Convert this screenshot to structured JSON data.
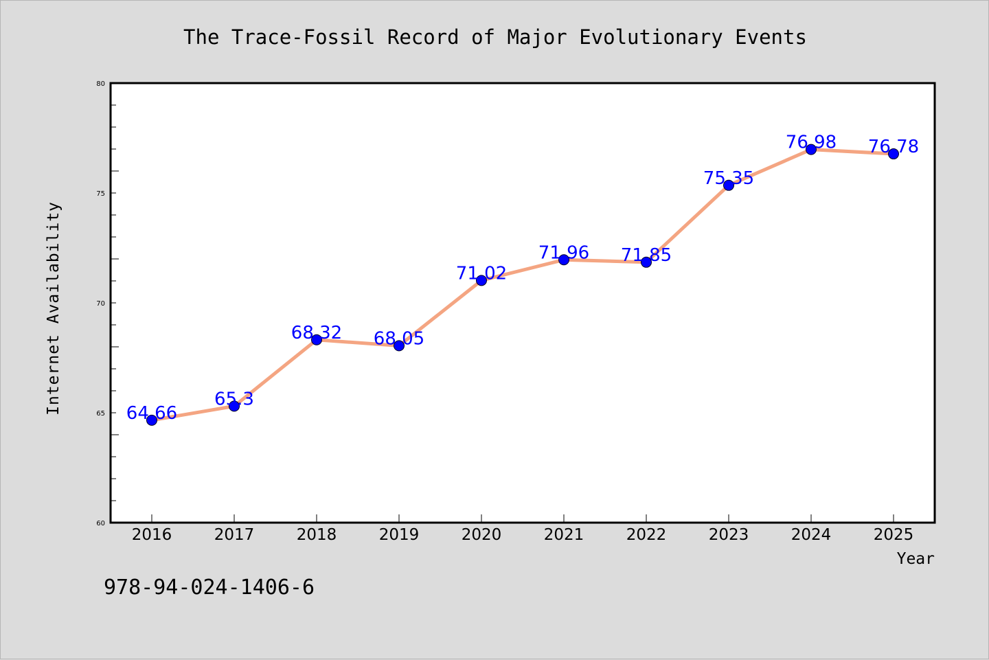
{
  "chart_data": {
    "type": "line",
    "title": "The Trace-Fossil Record of Major Evolutionary Events",
    "xlabel": "Year",
    "ylabel": "Internet Availability",
    "categories": [
      "2016",
      "2017",
      "2018",
      "2019",
      "2020",
      "2021",
      "2022",
      "2023",
      "2024",
      "2025"
    ],
    "series": [
      {
        "values": [
          64.66,
          65.3,
          68.32,
          68.05,
          71.02,
          71.96,
          71.85,
          75.35,
          76.98,
          76.78
        ],
        "labels": [
          "64.66",
          "65.3",
          "68.32",
          "68.05",
          "71.02",
          "71.96",
          "71.85",
          "75.35",
          "76.98",
          "76.78"
        ],
        "line_color": "#f4a582",
        "marker_color": "#0000ff"
      }
    ],
    "ylim": [
      60,
      80
    ],
    "yticks": [
      "60",
      "65",
      "70",
      "75",
      "80"
    ],
    "grid": false,
    "legend": "none"
  },
  "annotation": {
    "isbn": "978-94-024-1406-6"
  },
  "colors": {
    "background": "#dcdcdc",
    "plot_background": "#ffffff",
    "value_label": "#0000ff"
  }
}
